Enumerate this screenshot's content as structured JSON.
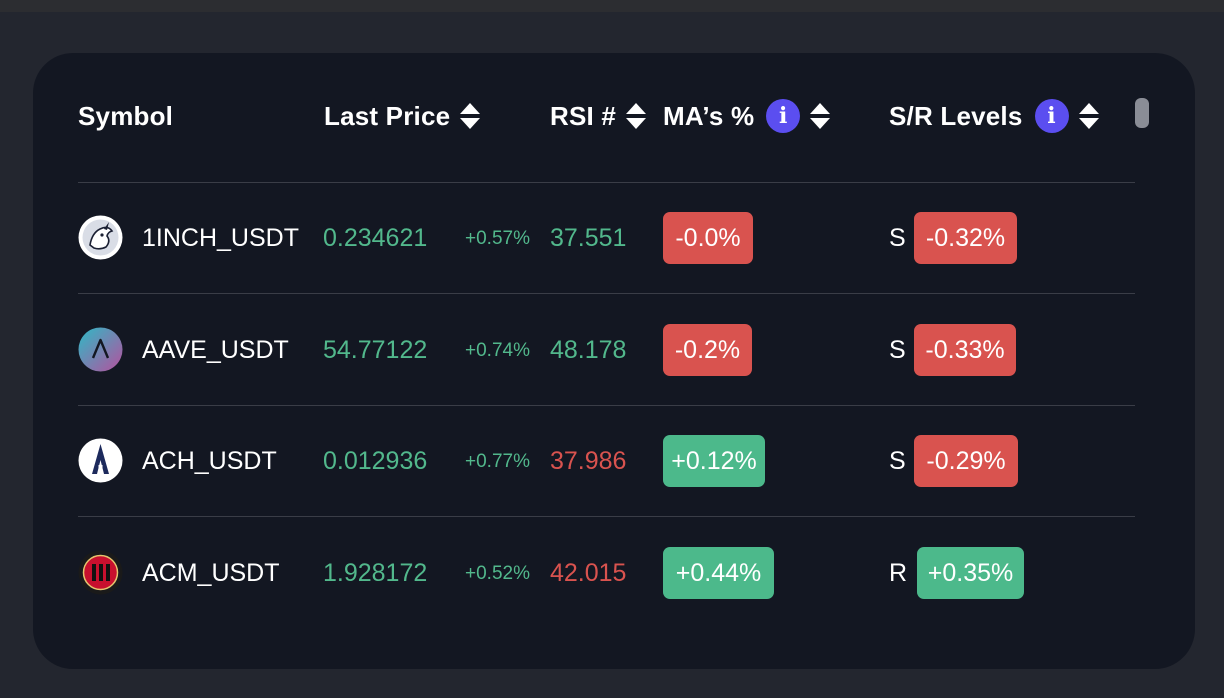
{
  "header": {
    "symbol": "Symbol",
    "last_price": "Last Price",
    "rsi": "RSI #",
    "mas": "MA’s %",
    "sr_levels": "S/R Levels",
    "info_glyph": "i"
  },
  "colors": {
    "positive": "#52b88c",
    "negative": "#d9534f",
    "badge_positive": "#4cb98b",
    "badge_negative": "#d9534f",
    "info_accent": "#5b4ef0",
    "card_bg": "#131722"
  },
  "rows": [
    {
      "symbol": "1INCH_USDT",
      "icon": "1inch-logo-icon",
      "price": "0.234621",
      "change": "+0.57%",
      "rsi": "37.551",
      "rsi_trend": "positive",
      "ma": "-0.0%",
      "ma_trend": "negative",
      "sr_type": "S",
      "sr_value": "-0.32%",
      "sr_trend": "negative"
    },
    {
      "symbol": "AAVE_USDT",
      "icon": "aave-logo-icon",
      "price": "54.77122",
      "change": "+0.74%",
      "rsi": "48.178",
      "rsi_trend": "positive",
      "ma": "-0.2%",
      "ma_trend": "negative",
      "sr_type": "S",
      "sr_value": "-0.33%",
      "sr_trend": "negative"
    },
    {
      "symbol": "ACH_USDT",
      "icon": "alchemy-pay-logo-icon",
      "price": "0.012936",
      "change": "+0.77%",
      "rsi": "37.986",
      "rsi_trend": "negative",
      "ma": "+0.12%",
      "ma_trend": "positive",
      "sr_type": "S",
      "sr_value": "-0.29%",
      "sr_trend": "negative"
    },
    {
      "symbol": "ACM_USDT",
      "icon": "ac-milan-logo-icon",
      "price": "1.928172",
      "change": "+0.52%",
      "rsi": "42.015",
      "rsi_trend": "negative",
      "ma": "+0.44%",
      "ma_trend": "positive",
      "sr_type": "R",
      "sr_value": "+0.35%",
      "sr_trend": "positive"
    }
  ]
}
